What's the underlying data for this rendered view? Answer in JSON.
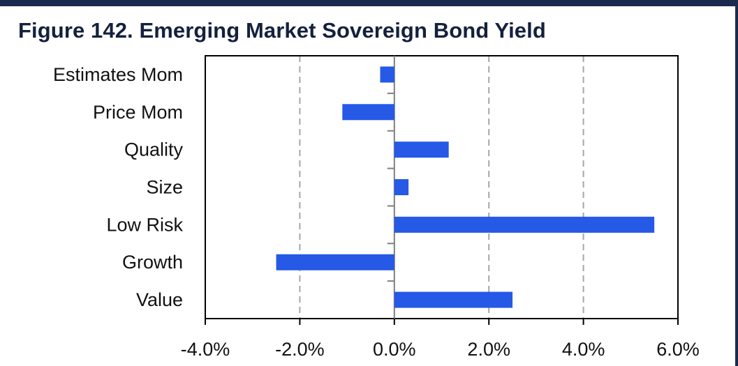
{
  "title": "Figure 142. Emerging Market Sovereign Bond Yield",
  "colors": {
    "bar": "#2559e6",
    "frame": "#1a2a4f",
    "grid": "#a6a6a6",
    "axis": "#000000"
  },
  "chart_data": {
    "type": "bar",
    "orientation": "horizontal",
    "categories": [
      "Estimates Mom",
      "Price Mom",
      "Quality",
      "Size",
      "Low Risk",
      "Growth",
      "Value"
    ],
    "values": [
      -0.3,
      -1.1,
      1.15,
      0.3,
      5.5,
      -2.5,
      2.5
    ],
    "value_unit": "%",
    "xlim": [
      -4.0,
      6.0
    ],
    "x_ticks": [
      -4.0,
      -2.0,
      0.0,
      2.0,
      4.0,
      6.0
    ],
    "x_tick_labels": [
      "-4.0%",
      "-2.0%",
      "0.0%",
      "2.0%",
      "4.0%",
      "6.0%"
    ],
    "grid": "vertical dashed",
    "legend": "none"
  }
}
